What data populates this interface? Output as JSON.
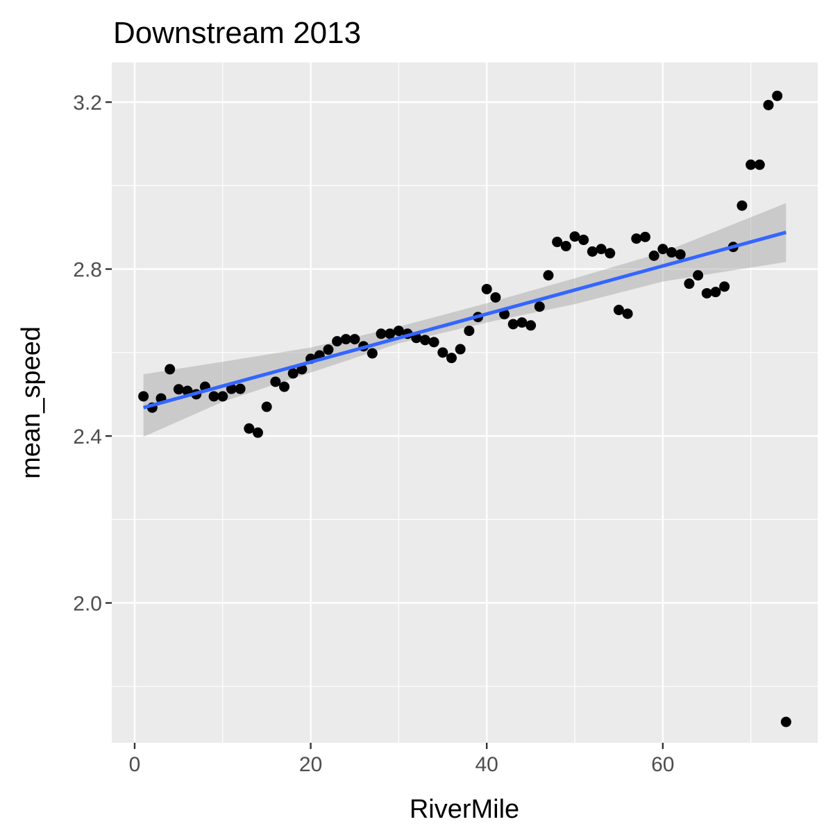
{
  "chart_data": {
    "type": "scatter",
    "title": "Downstream 2013",
    "xlabel": "RiverMile",
    "ylabel": "mean_speed",
    "xlim": [
      -2.6,
      77.6
    ],
    "ylim": [
      1.665,
      3.295
    ],
    "x_ticks": [
      0,
      20,
      40,
      60
    ],
    "x_tick_labels": [
      "0",
      "20",
      "40",
      "60"
    ],
    "y_ticks": [
      2.0,
      2.4,
      2.8,
      3.2
    ],
    "y_tick_labels": [
      "2.0",
      "2.4",
      "2.8",
      "3.2"
    ],
    "grid": true,
    "colors": {
      "panel": "#ebebeb",
      "grid": "#ffffff",
      "point": "#000000",
      "fit_line": "#3366ff",
      "ribbon": "#999999"
    },
    "points": {
      "x": [
        1,
        2,
        3,
        4,
        5,
        6,
        7,
        8,
        9,
        10,
        11,
        12,
        13,
        14,
        15,
        16,
        17,
        18,
        19,
        20,
        21,
        22,
        23,
        24,
        25,
        26,
        27,
        28,
        29,
        30,
        31,
        32,
        33,
        34,
        35,
        36,
        37,
        38,
        39,
        40,
        41,
        42,
        43,
        44,
        45,
        46,
        47,
        48,
        49,
        50,
        51,
        52,
        53,
        54,
        55,
        56,
        57,
        58,
        59,
        60,
        61,
        62,
        63,
        64,
        65,
        66,
        67,
        68,
        69,
        70,
        71,
        72,
        73,
        74
      ],
      "y": [
        2.495,
        2.468,
        2.49,
        2.56,
        2.512,
        2.508,
        2.5,
        2.518,
        2.495,
        2.495,
        2.513,
        2.513,
        2.418,
        2.408,
        2.47,
        2.53,
        2.518,
        2.55,
        2.56,
        2.585,
        2.593,
        2.607,
        2.627,
        2.632,
        2.632,
        2.615,
        2.598,
        2.645,
        2.645,
        2.652,
        2.645,
        2.635,
        2.63,
        2.625,
        2.6,
        2.587,
        2.608,
        2.652,
        2.685,
        2.752,
        2.732,
        2.692,
        2.668,
        2.672,
        2.665,
        2.71,
        2.785,
        2.865,
        2.855,
        2.878,
        2.87,
        2.842,
        2.848,
        2.838,
        2.702,
        2.693,
        2.873,
        2.877,
        2.832,
        2.848,
        2.84,
        2.835,
        2.765,
        2.785,
        2.742,
        2.745,
        2.758,
        2.853,
        2.952,
        3.05,
        3.05,
        3.193,
        3.215,
        1.715
      ]
    },
    "fit_line": {
      "x": [
        1,
        74
      ],
      "y": [
        2.468,
        2.888
      ]
    },
    "ribbon": {
      "x": [
        1,
        10,
        20,
        30,
        40,
        50,
        60,
        74
      ],
      "upper": [
        2.548,
        2.578,
        2.612,
        2.662,
        2.718,
        2.778,
        2.84,
        2.958
      ],
      "lower": [
        2.398,
        2.482,
        2.552,
        2.622,
        2.672,
        2.716,
        2.77,
        2.817
      ]
    }
  }
}
